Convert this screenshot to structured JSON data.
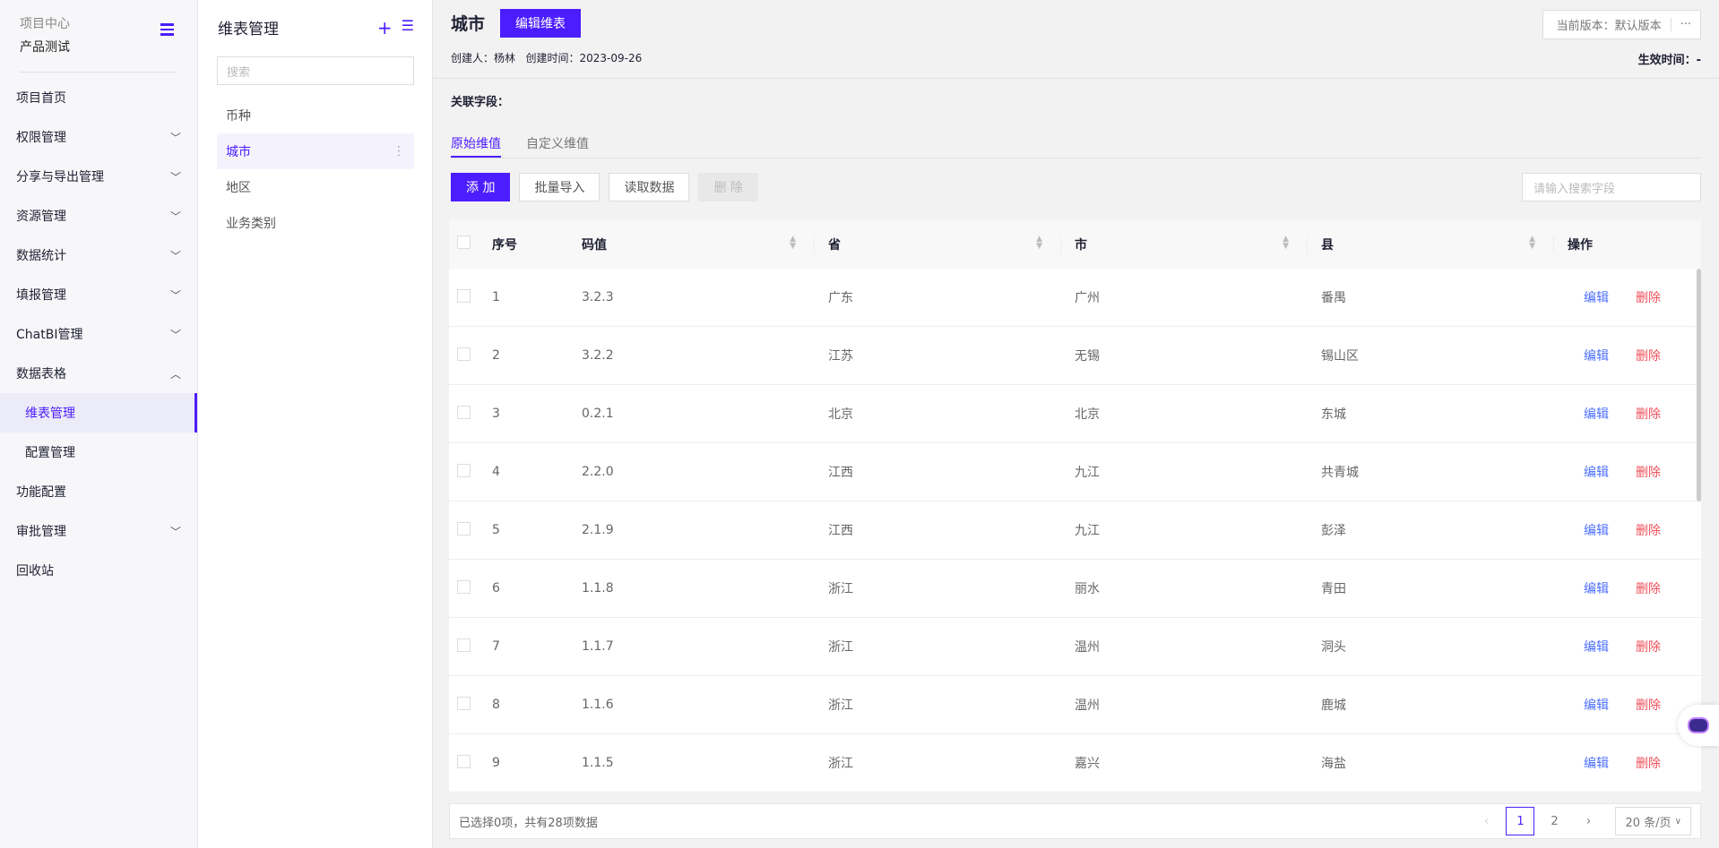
{
  "sidebar": {
    "project_label": "项目中心",
    "project_name": "产品测试",
    "items": [
      {
        "label": "项目首页",
        "chevron": ""
      },
      {
        "label": "权限管理",
        "chevron": "down"
      },
      {
        "label": "分享与导出管理",
        "chevron": "down"
      },
      {
        "label": "资源管理",
        "chevron": "down"
      },
      {
        "label": "数据统计",
        "chevron": "down"
      },
      {
        "label": "填报管理",
        "chevron": "down"
      },
      {
        "label": "ChatBI管理",
        "chevron": "down"
      },
      {
        "label": "数据表格",
        "chevron": "up"
      },
      {
        "label": "维表管理",
        "sub": true,
        "active": true
      },
      {
        "label": "配置管理",
        "sub": true
      },
      {
        "label": "功能配置",
        "chevron": ""
      },
      {
        "label": "审批管理",
        "chevron": "down"
      },
      {
        "label": "回收站",
        "chevron": ""
      }
    ]
  },
  "dim_panel": {
    "title": "维表管理",
    "search_placeholder": "搜索",
    "items": [
      "币种",
      "城市",
      "地区",
      "业务类别"
    ],
    "active": "城市"
  },
  "header": {
    "title": "城市",
    "edit_button": "编辑维表",
    "version": "当前版本：默认版本",
    "more": "···",
    "creator": "创建人：杨林",
    "created": "创建时间：2023-09-26",
    "effective": "生效时间：-",
    "related_field": "关联字段："
  },
  "tabs": [
    "原始维值",
    "自定义维值"
  ],
  "toolbar": {
    "add": "添 加",
    "import": "批量导入",
    "read": "读取数据",
    "delete": "删 除",
    "search_placeholder": "请输入搜索字段"
  },
  "table": {
    "columns": [
      "序号",
      "码值",
      "省",
      "市",
      "县",
      "操作"
    ],
    "edit": "编辑",
    "delete": "删除",
    "rows": [
      [
        "1",
        "3.2.3",
        "广东",
        "广州",
        "番禺"
      ],
      [
        "2",
        "3.2.2",
        "江苏",
        "无锡",
        "锡山区"
      ],
      [
        "3",
        "0.2.1",
        "北京",
        "北京",
        "东城"
      ],
      [
        "4",
        "2.2.0",
        "江西",
        "九江",
        "共青城"
      ],
      [
        "5",
        "2.1.9",
        "江西",
        "九江",
        "彭泽"
      ],
      [
        "6",
        "1.1.8",
        "浙江",
        "丽水",
        "青田"
      ],
      [
        "7",
        "1.1.7",
        "浙江",
        "温州",
        "洞头"
      ],
      [
        "8",
        "1.1.6",
        "浙江",
        "温州",
        "鹿城"
      ],
      [
        "9",
        "1.1.5",
        "浙江",
        "嘉兴",
        "海盐"
      ]
    ]
  },
  "pagination": {
    "summary": "已选择0项，共有28项数据",
    "pages": [
      "1",
      "2"
    ],
    "current": "1",
    "page_size": "20 条/页"
  },
  "colors": {
    "accent": "#4c1dff",
    "edit": "#4c6fff",
    "delete": "#f0505a"
  }
}
